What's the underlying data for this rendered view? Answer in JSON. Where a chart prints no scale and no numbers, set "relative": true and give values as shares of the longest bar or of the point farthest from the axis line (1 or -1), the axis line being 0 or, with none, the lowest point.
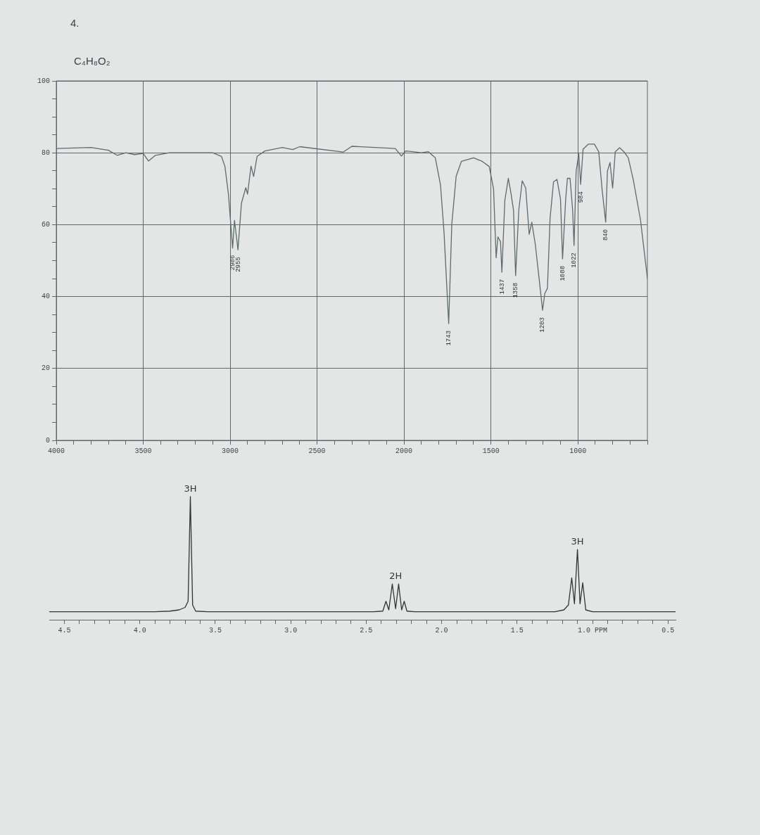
{
  "chart_data": [
    {
      "type": "line",
      "title": "4.",
      "subtitle": "C₄H₈O₂",
      "color": "#5f6b6b",
      "grid": true,
      "x": [
        4000,
        3800,
        3700,
        3650,
        3600,
        3550,
        3500,
        3470,
        3430,
        3350,
        3100,
        3050,
        3030,
        3010,
        2986,
        2975,
        2955,
        2935,
        2910,
        2900,
        2880,
        2865,
        2845,
        2800,
        2700,
        2640,
        2600,
        2350,
        2300,
        2050,
        2015,
        1990,
        1950,
        1900,
        1860,
        1820,
        1790,
        1770,
        1743,
        1725,
        1700,
        1670,
        1600,
        1550,
        1510,
        1485,
        1470,
        1460,
        1445,
        1437,
        1420,
        1400,
        1385,
        1370,
        1358,
        1340,
        1320,
        1300,
        1280,
        1265,
        1245,
        1220,
        1203,
        1190,
        1175,
        1160,
        1140,
        1120,
        1100,
        1088,
        1070,
        1060,
        1045,
        1030,
        1022,
        1010,
        995,
        984,
        970,
        940,
        905,
        880,
        860,
        840,
        830,
        815,
        800,
        785,
        760,
        735,
        710,
        680,
        640,
        600
      ],
      "values": [
        81.2,
        81.5,
        80.7,
        79.3,
        80,
        79.5,
        79.8,
        77.7,
        79.3,
        80,
        80,
        79,
        76.2,
        68.5,
        53.5,
        61.2,
        53,
        66,
        70.3,
        68.5,
        76.3,
        73.4,
        79,
        80.5,
        81.5,
        80.9,
        81.7,
        80.2,
        81.8,
        81.2,
        79.1,
        80.5,
        80.3,
        80,
        80.3,
        78.6,
        71,
        58,
        32.5,
        60.3,
        73.5,
        77.6,
        78.6,
        77.6,
        76.2,
        70,
        50.8,
        56.6,
        55.3,
        46.8,
        66.8,
        72.9,
        68.8,
        64,
        45.8,
        64,
        72.2,
        70.2,
        57.3,
        60.7,
        54.6,
        43.7,
        36.2,
        40.9,
        42.3,
        61.7,
        71.9,
        72.6,
        67.2,
        50.5,
        67.2,
        72.9,
        72.9,
        64,
        54.2,
        74.9,
        79.7,
        71.2,
        81,
        82.4,
        82.4,
        80.3,
        69.5,
        60.7,
        74.9,
        77.3,
        70.2,
        80.3,
        81.4,
        80.3,
        78.6,
        72.2,
        61.4,
        45.1
      ],
      "xlim": [
        4000,
        600
      ],
      "xticks": [
        4000,
        {
          "value": 3900,
          "label": null
        },
        {
          "value": 3800,
          "label": null
        },
        {
          "value": 3700,
          "label": null
        },
        {
          "value": 3600,
          "label": null
        },
        3500,
        {
          "value": 3400,
          "label": null
        },
        {
          "value": 3300,
          "label": null
        },
        {
          "value": 3200,
          "label": null
        },
        {
          "value": 3100,
          "label": null
        },
        3000,
        {
          "value": 2900,
          "label": null
        },
        {
          "value": 2800,
          "label": null
        },
        {
          "value": 2700,
          "label": null
        },
        {
          "value": 2600,
          "label": null
        },
        2500,
        {
          "value": 2400,
          "label": null
        },
        {
          "value": 2300,
          "label": null
        },
        {
          "value": 2200,
          "label": null
        },
        {
          "value": 2100,
          "label": null
        },
        2000,
        {
          "value": 1900,
          "label": null
        },
        {
          "value": 1800,
          "label": null
        },
        {
          "value": 1700,
          "label": null
        },
        {
          "value": 1600,
          "label": null
        },
        1500,
        {
          "value": 1400,
          "label": null
        },
        {
          "value": 1300,
          "label": null
        },
        {
          "value": 1200,
          "label": null
        },
        {
          "value": 1100,
          "label": null
        },
        1000,
        {
          "value": 900,
          "label": null
        },
        {
          "value": 800,
          "label": null
        },
        {
          "value": 700,
          "label": null
        },
        {
          "value": 600,
          "label": null
        }
      ],
      "ylim": [
        0,
        100
      ],
      "yticks": [
        0,
        {
          "value": 5,
          "label": null
        },
        {
          "value": 10,
          "label": null
        },
        {
          "value": 15,
          "label": null
        },
        20,
        {
          "value": 25,
          "label": null
        },
        {
          "value": 30,
          "label": null
        },
        {
          "value": 35,
          "label": null
        },
        40,
        {
          "value": 45,
          "label": null
        },
        {
          "value": 50,
          "label": null
        },
        {
          "value": 55,
          "label": null
        },
        60,
        {
          "value": 65,
          "label": null
        },
        {
          "value": 70,
          "label": null
        },
        {
          "value": 75,
          "label": null
        },
        80,
        {
          "value": 85,
          "label": null
        },
        {
          "value": 90,
          "label": null
        },
        {
          "value": 95,
          "label": null
        },
        100
      ],
      "annotations": [
        {
          "text": "2986",
          "x": 2986,
          "y": 53.5
        },
        {
          "text": "2955",
          "x": 2955,
          "y": 53
        },
        {
          "text": "1743",
          "x": 1743,
          "y": 32.5
        },
        {
          "text": "1437",
          "x": 1437,
          "y": 46.8
        },
        {
          "text": "1358",
          "x": 1358,
          "y": 45.8
        },
        {
          "text": "1203",
          "x": 1203,
          "y": 36.2
        },
        {
          "text": "1088",
          "x": 1088,
          "y": 50.5
        },
        {
          "text": "1022",
          "x": 1022,
          "y": 54.2
        },
        {
          "text": "984",
          "x": 984,
          "y": 71.2
        },
        {
          "text": "840",
          "x": 840,
          "y": 60.7
        }
      ]
    },
    {
      "type": "line",
      "relative": true,
      "color": "#333333",
      "x": [
        4.6,
        3.9,
        3.8,
        3.74,
        3.7,
        3.68,
        3.665,
        3.65,
        3.63,
        3.55,
        2.45,
        2.39,
        2.369,
        2.35,
        2.327,
        2.305,
        2.285,
        2.265,
        2.248,
        2.23,
        2.18,
        1.25,
        1.19,
        1.16,
        1.138,
        1.12,
        1.1,
        1.083,
        1.065,
        1.045,
        1.0,
        0.45
      ],
      "values": [
        0.065,
        0.065,
        0.07,
        0.08,
        0.1,
        0.15,
        1,
        0.12,
        0.07,
        0.065,
        0.065,
        0.07,
        0.15,
        0.08,
        0.29,
        0.09,
        0.29,
        0.08,
        0.15,
        0.07,
        0.065,
        0.065,
        0.08,
        0.12,
        0.34,
        0.13,
        0.57,
        0.13,
        0.3,
        0.08,
        0.065,
        0.065
      ],
      "xlim": [
        4.6,
        0.45
      ],
      "xticks": [
        4.5,
        {
          "value": 4.4,
          "label": null
        },
        {
          "value": 4.3,
          "label": null
        },
        {
          "value": 4.2,
          "label": null
        },
        {
          "value": 4.1,
          "label": null
        },
        {
          "value": 4,
          "label": "4.0"
        },
        {
          "value": 3.9,
          "label": null
        },
        {
          "value": 3.8,
          "label": null
        },
        {
          "value": 3.7,
          "label": null
        },
        {
          "value": 3.6,
          "label": null
        },
        3.5,
        {
          "value": 3.4,
          "label": null
        },
        {
          "value": 3.3,
          "label": null
        },
        {
          "value": 3.2,
          "label": null
        },
        {
          "value": 3.1,
          "label": null
        },
        {
          "value": 3,
          "label": "3.0"
        },
        {
          "value": 2.9,
          "label": null
        },
        {
          "value": 2.8,
          "label": null
        },
        {
          "value": 2.7,
          "label": null
        },
        {
          "value": 2.6,
          "label": null
        },
        2.5,
        {
          "value": 2.4,
          "label": null
        },
        {
          "value": 2.3,
          "label": null
        },
        {
          "value": 2.2,
          "label": null
        },
        {
          "value": 2.1,
          "label": null
        },
        {
          "value": 2,
          "label": "2.0"
        },
        {
          "value": 1.9,
          "label": null
        },
        {
          "value": 1.8,
          "label": null
        },
        {
          "value": 1.7,
          "label": null
        },
        {
          "value": 1.6,
          "label": null
        },
        1.5,
        {
          "value": 1.4,
          "label": null
        },
        {
          "value": 1.3,
          "label": null
        },
        {
          "value": 1.2,
          "label": null
        },
        {
          "value": 1.1,
          "label": null
        },
        {
          "value": 1,
          "label": "1.0 PPM"
        },
        {
          "value": 0.9,
          "label": null
        },
        {
          "value": 0.8,
          "label": null
        },
        {
          "value": 0.7,
          "label": null
        },
        {
          "value": 0.6,
          "label": null
        },
        0.5
      ],
      "annotations": [
        {
          "text": "3H",
          "x": 3.665,
          "y": 1
        },
        {
          "text": "2H",
          "x": 2.305,
          "y": 0.29
        },
        {
          "text": "3H",
          "x": 1.1,
          "y": 0.57
        }
      ]
    }
  ]
}
